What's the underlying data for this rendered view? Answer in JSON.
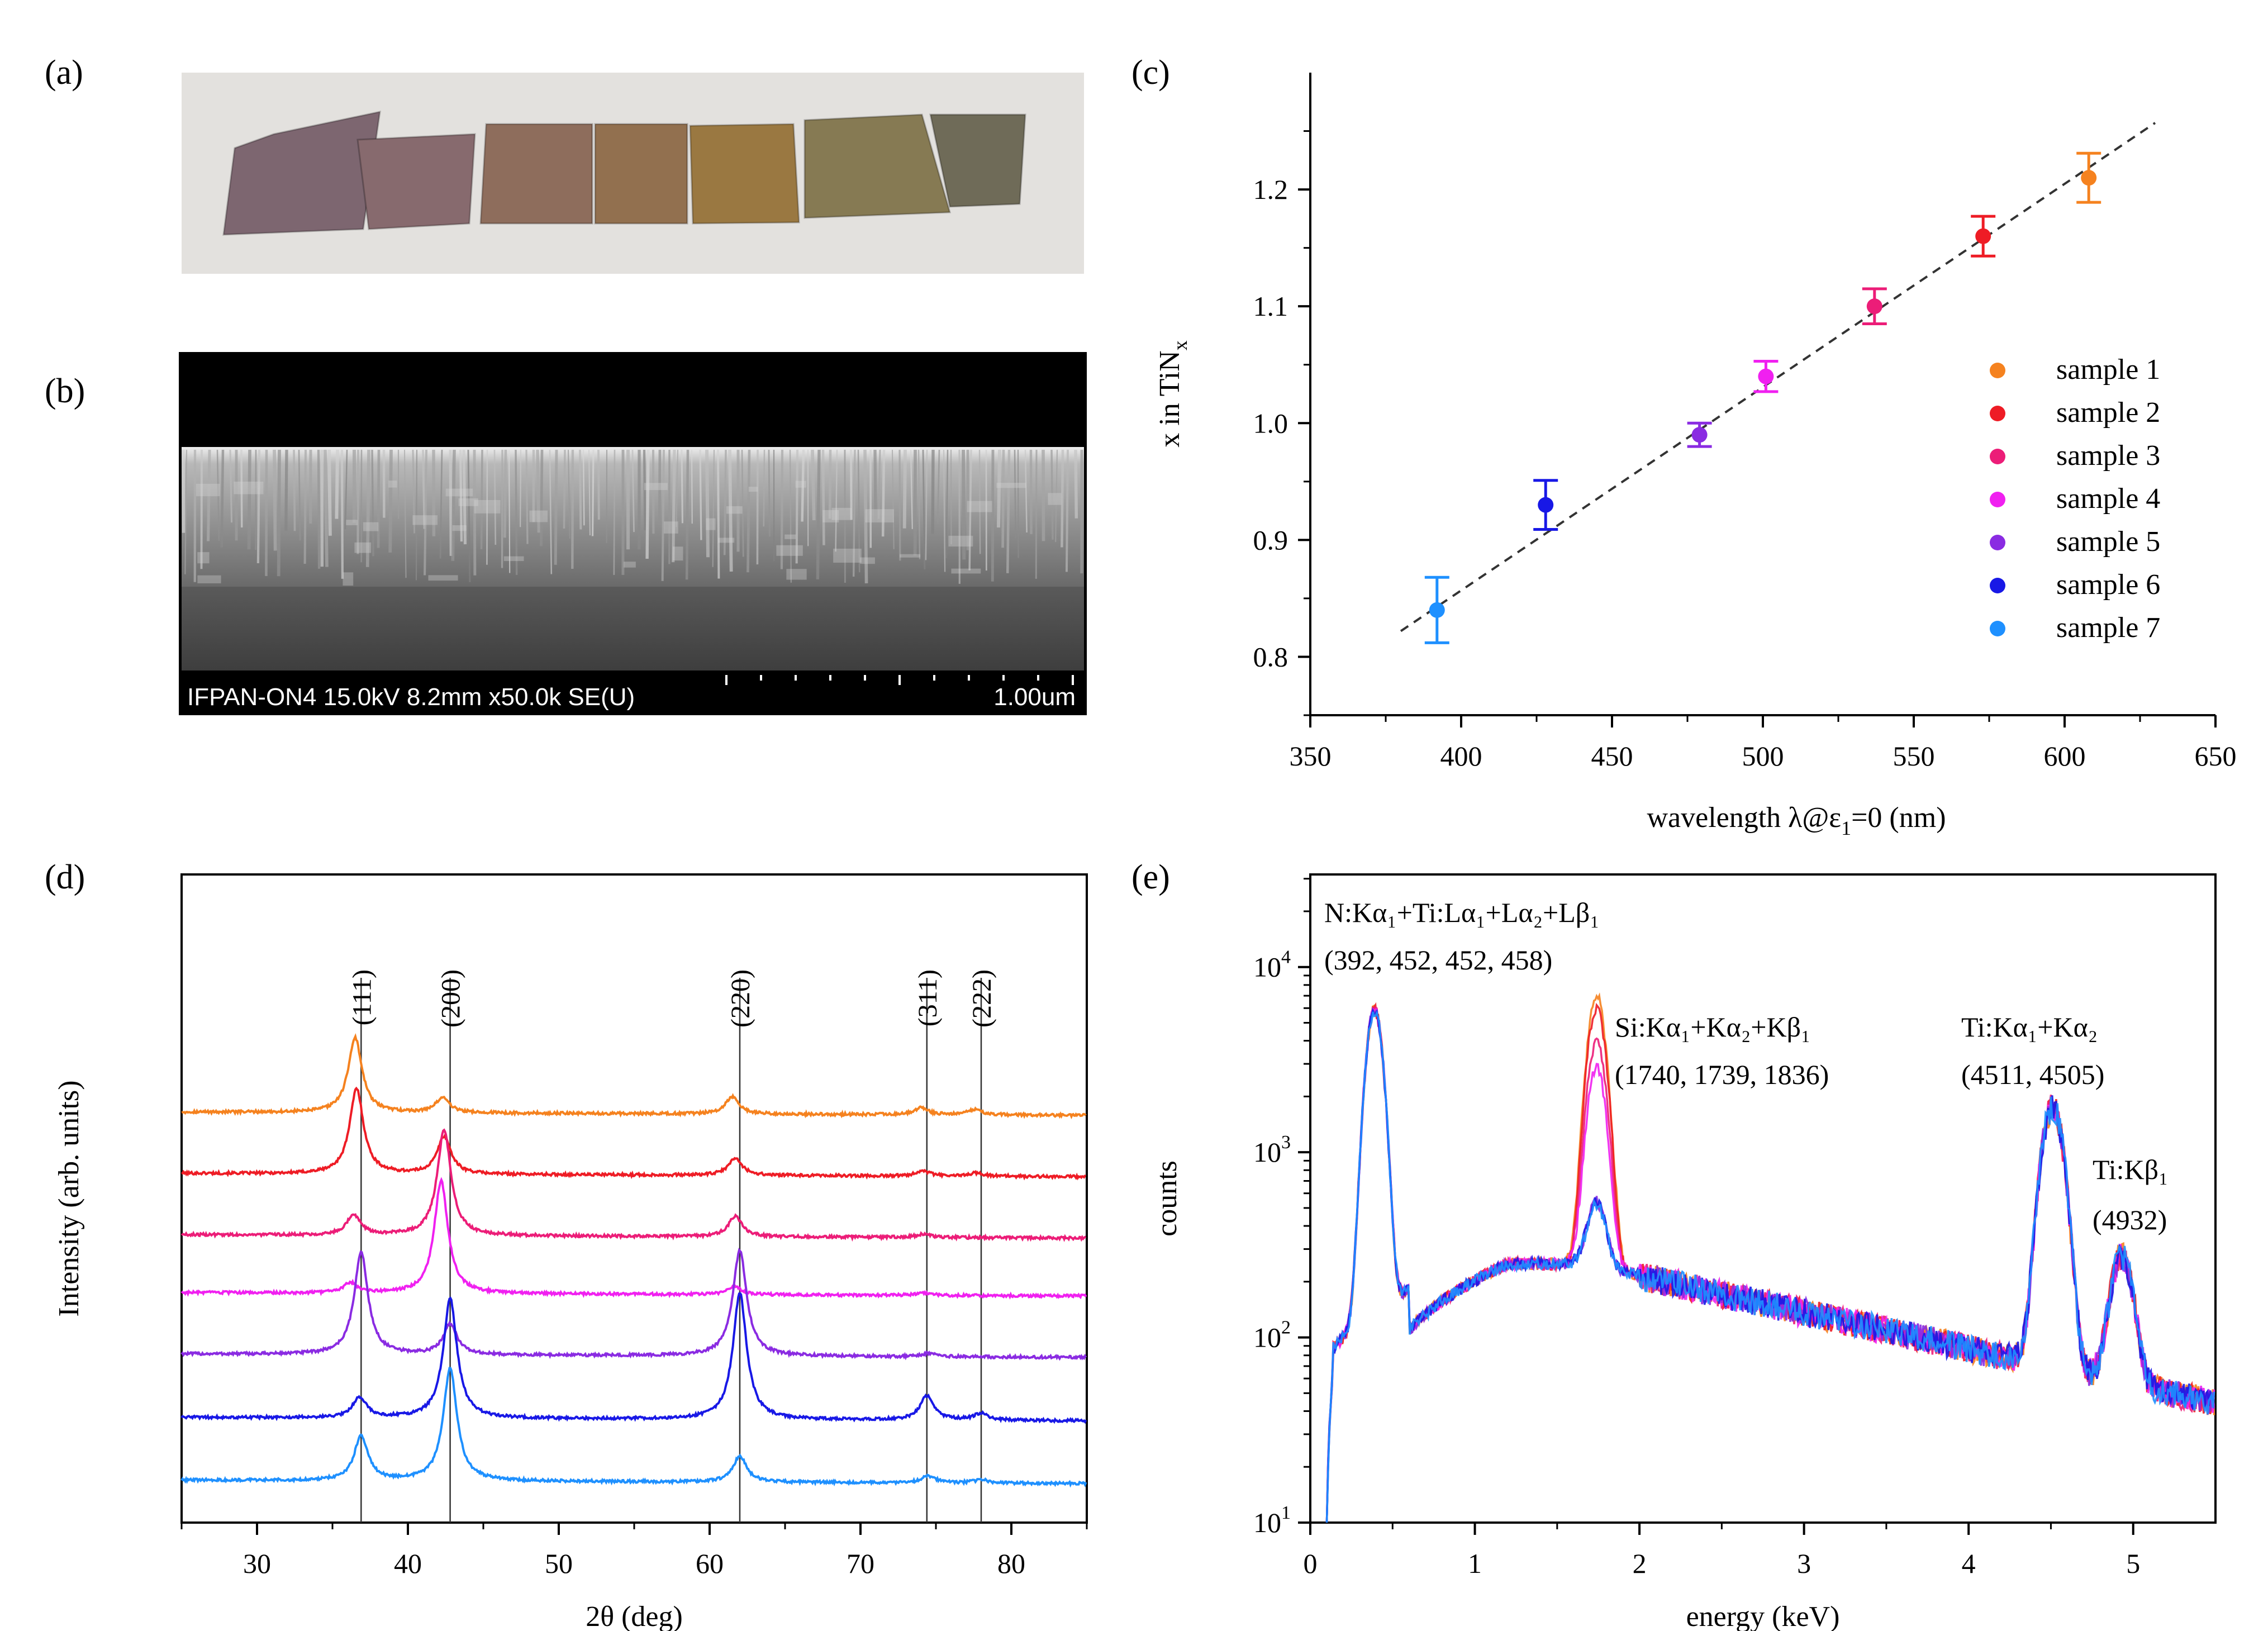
{
  "panels": {
    "a": {
      "label": "(a)"
    },
    "b": {
      "label": "(b)",
      "sem_info": "IFPAN-ON4 15.0kV 8.2mm x50.0k SE(U)",
      "scale_label": "1.00um"
    },
    "c": {
      "label": "(c)"
    },
    "d": {
      "label": "(d)"
    },
    "e": {
      "label": "(e)"
    }
  },
  "sample_colors": [
    "#f5821f",
    "#ee1c25",
    "#ec1d78",
    "#f020f0",
    "#8a2be2",
    "#1818e6",
    "#1e90ff"
  ],
  "photo_swatches": [
    "#7d6670",
    "#876a6e",
    "#8e6d5c",
    "#92704f",
    "#9a7841",
    "#867a53",
    "#6f6b58"
  ],
  "chart_data": [
    {
      "panel": "c",
      "type": "scatter",
      "xlabel_main": "wavelength λ@ε",
      "xlabel_sub": "1",
      "xlabel_tail": "=0 (nm)",
      "ylabel_main": "x in TiN",
      "ylabel_sub": "x",
      "xlim": [
        350,
        650
      ],
      "ylim": [
        0.75,
        1.3
      ],
      "xticks": [
        350,
        400,
        450,
        500,
        550,
        600,
        650
      ],
      "yticks": [
        0.8,
        0.9,
        1.0,
        1.1,
        1.2
      ],
      "ytick_labels": [
        "0.8",
        "0.9",
        "1.0",
        "1.1",
        "1.2"
      ],
      "legend_position": "right",
      "series": [
        {
          "name": "sample 1",
          "x": 608,
          "y": 1.21,
          "err": 0.021
        },
        {
          "name": "sample 2",
          "x": 573,
          "y": 1.16,
          "err": 0.017
        },
        {
          "name": "sample 3",
          "x": 537,
          "y": 1.1,
          "err": 0.015
        },
        {
          "name": "sample 4",
          "x": 501,
          "y": 1.04,
          "err": 0.013
        },
        {
          "name": "sample 5",
          "x": 479,
          "y": 0.99,
          "err": 0.01
        },
        {
          "name": "sample 6",
          "x": 428,
          "y": 0.93,
          "err": 0.021
        },
        {
          "name": "sample 7",
          "x": 392,
          "y": 0.84,
          "err": 0.028
        }
      ],
      "fit_line": {
        "x": [
          380,
          630
        ],
        "y": [
          0.822,
          1.257
        ],
        "style": "dashed"
      }
    },
    {
      "panel": "d",
      "type": "line",
      "xlabel": "2θ (deg)",
      "ylabel": "Intensity (arb. units)",
      "xlim": [
        25,
        85
      ],
      "xticks": [
        30,
        40,
        50,
        60,
        70,
        80
      ],
      "reference_peaks": [
        {
          "label": "(111)",
          "x": 36.9
        },
        {
          "label": "(200)",
          "x": 42.8
        },
        {
          "label": "(220)",
          "x": 62.0
        },
        {
          "label": "(311)",
          "x": 74.4
        },
        {
          "label": "(222)",
          "x": 78.0
        }
      ],
      "baseline_offsets": [
        0.0,
        0.92,
        1.85,
        2.75,
        3.6,
        4.5,
        5.4
      ],
      "series": [
        {
          "sample": 1,
          "peaks": [
            [
              36.5,
              1.1
            ],
            [
              42.3,
              0.22
            ],
            [
              61.5,
              0.25
            ],
            [
              74.0,
              0.1
            ],
            [
              77.6,
              0.08
            ]
          ]
        },
        {
          "sample": 2,
          "peaks": [
            [
              36.6,
              1.25
            ],
            [
              42.4,
              0.55
            ],
            [
              61.7,
              0.25
            ],
            [
              74.1,
              0.08
            ],
            [
              77.7,
              0.05
            ]
          ]
        },
        {
          "sample": 3,
          "peaks": [
            [
              36.4,
              0.3
            ],
            [
              42.4,
              1.55
            ],
            [
              61.7,
              0.3
            ],
            [
              74.2,
              0.05
            ]
          ]
        },
        {
          "sample": 4,
          "peaks": [
            [
              36.2,
              0.15
            ],
            [
              42.2,
              1.65
            ],
            [
              61.6,
              0.12
            ],
            [
              74.1,
              0.04
            ]
          ]
        },
        {
          "sample": 5,
          "peaks": [
            [
              36.9,
              1.5
            ],
            [
              42.8,
              0.45
            ],
            [
              62.0,
              1.55
            ],
            [
              74.5,
              0.05
            ]
          ]
        },
        {
          "sample": 6,
          "peaks": [
            [
              36.8,
              0.3
            ],
            [
              42.8,
              1.75
            ],
            [
              62.0,
              1.85
            ],
            [
              74.4,
              0.35
            ],
            [
              78.0,
              0.1
            ]
          ]
        },
        {
          "sample": 7,
          "peaks": [
            [
              36.9,
              0.65
            ],
            [
              42.8,
              1.65
            ],
            [
              62.0,
              0.38
            ],
            [
              74.5,
              0.1
            ],
            [
              78.0,
              0.05
            ]
          ]
        }
      ]
    },
    {
      "panel": "e",
      "type": "line",
      "xlabel": "energy (keV)",
      "ylabel": "counts",
      "xlim": [
        0,
        5.5
      ],
      "ylim_log10": [
        1,
        4.5
      ],
      "log_y": true,
      "xticks": [
        0,
        1,
        2,
        3,
        4,
        5
      ],
      "yticks_exp": [
        1,
        2,
        3,
        4
      ],
      "si_peak_heights": [
        6600,
        5800,
        3700,
        2600,
        300,
        300,
        280
      ],
      "annotations": [
        {
          "id": "n-ti-l",
          "line1": "N:Kα₁+Ti:Lα₁+Lα₂+Lβ₁",
          "line2": "(392, 452, 452, 458)"
        },
        {
          "id": "si-k",
          "line1": "Si:Kα₁+Kα₂+Kβ₁",
          "line2": "(1740, 1739, 1836)"
        },
        {
          "id": "ti-ka",
          "line1": "Ti:Kα₁+Kα₂",
          "line2": "(4511, 4505)"
        },
        {
          "id": "ti-kb",
          "line1": "Ti:Kβ₁",
          "line2": "(4932)"
        }
      ]
    }
  ]
}
